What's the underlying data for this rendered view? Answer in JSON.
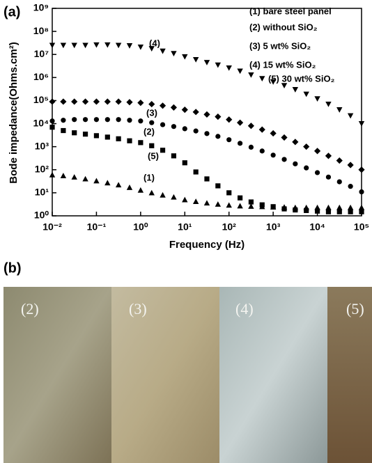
{
  "chart_data": {
    "type": "scatter",
    "panel_label": "(a)",
    "xlabel": "Frequency (Hz)",
    "ylabel": "Bode impedance(Ohms.cm²)",
    "xscale": "log",
    "yscale": "log",
    "xlim": [
      0.01,
      100000
    ],
    "ylim": [
      1,
      1000000000
    ],
    "xticks": [
      {
        "value": 0.01,
        "label": "10⁻²"
      },
      {
        "value": 0.1,
        "label": "10⁻¹"
      },
      {
        "value": 1,
        "label": "10⁰"
      },
      {
        "value": 10,
        "label": "10¹"
      },
      {
        "value": 100,
        "label": "10²"
      },
      {
        "value": 1000,
        "label": "10³"
      },
      {
        "value": 10000,
        "label": "10⁴"
      },
      {
        "value": 100000,
        "label": "10⁵"
      }
    ],
    "yticks": [
      {
        "value": 1,
        "label": "10⁰"
      },
      {
        "value": 10,
        "label": "10¹"
      },
      {
        "value": 100,
        "label": "10²"
      },
      {
        "value": 1000,
        "label": "10³"
      },
      {
        "value": 10000,
        "label": "10⁴"
      },
      {
        "value": 100000,
        "label": "10⁵"
      },
      {
        "value": 1000000,
        "label": "10⁶"
      },
      {
        "value": 10000000,
        "label": "10⁷"
      },
      {
        "value": 100000000,
        "label": "10⁸"
      },
      {
        "value": 1000000000,
        "label": "10⁹"
      }
    ],
    "x": [
      0.01,
      0.0178,
      0.0316,
      0.0562,
      0.1,
      0.178,
      0.316,
      0.562,
      1,
      1.78,
      3.16,
      5.62,
      10,
      17.8,
      31.6,
      56.2,
      100,
      178,
      316,
      562,
      1000,
      1780,
      3160,
      5620,
      10000,
      17800,
      31600,
      56200,
      100000
    ],
    "series": [
      {
        "name": "(1) bare steel panel",
        "marker": "triangle-up",
        "color": "#000000",
        "values": [
          60,
          55,
          48,
          40,
          33,
          27,
          22,
          17,
          13,
          10,
          8,
          6.5,
          5,
          4.2,
          3.6,
          3.2,
          2.9,
          2.7,
          2.6,
          2.5,
          2.4,
          2.4,
          2.3,
          2.3,
          2.3,
          2.3,
          2.3,
          2.3,
          2.3
        ]
      },
      {
        "name": "(2) without SiO₂",
        "marker": "circle",
        "color": "#000000",
        "values": [
          13000,
          14000,
          15000,
          15000,
          15000,
          15000,
          15000,
          14000,
          13000,
          11000,
          9000,
          7500,
          6000,
          4800,
          3700,
          2800,
          2000,
          1400,
          950,
          650,
          430,
          280,
          180,
          120,
          75,
          48,
          30,
          19,
          11
        ]
      },
      {
        "name": "(3) 5 wt% SiO₂",
        "marker": "diamond",
        "color": "#000000",
        "values": [
          90000,
          90000,
          90000,
          90000,
          90000,
          90000,
          90000,
          85000,
          80000,
          70000,
          60000,
          50000,
          40000,
          32000,
          25000,
          20000,
          15000,
          11000,
          8000,
          5500,
          3800,
          2500,
          1600,
          1000,
          650,
          400,
          250,
          160,
          100
        ]
      },
      {
        "name": "(4) 15 wt% SiO₂",
        "marker": "triangle-down",
        "color": "#000000",
        "values": [
          25000000,
          25000000,
          25000000,
          25000000,
          26000000,
          26000000,
          25000000,
          24000000,
          21000000,
          18000000,
          14000000,
          11000000,
          8000000,
          6000000,
          4500000,
          3500000,
          2600000,
          1900000,
          1300000,
          900000,
          650000,
          450000,
          300000,
          190000,
          120000,
          70000,
          40000,
          22000,
          10000
        ]
      },
      {
        "name": "(5) 30 wt% SiO₂",
        "marker": "square",
        "color": "#000000",
        "values": [
          7000,
          5000,
          4000,
          3500,
          3000,
          2600,
          2200,
          1800,
          1500,
          1100,
          700,
          400,
          200,
          80,
          40,
          20,
          10,
          6,
          4,
          3,
          2.5,
          2,
          1.8,
          1.7,
          1.6,
          1.5,
          1.5,
          1.5,
          1.5
        ]
      }
    ],
    "annotations": [
      "(1)",
      "(2)",
      "(3)",
      "(4)",
      "(5)"
    ]
  },
  "panel_b": {
    "panel_label": "(b)",
    "labels": [
      "(2)",
      "(3)",
      "(4)",
      "(5)"
    ]
  }
}
